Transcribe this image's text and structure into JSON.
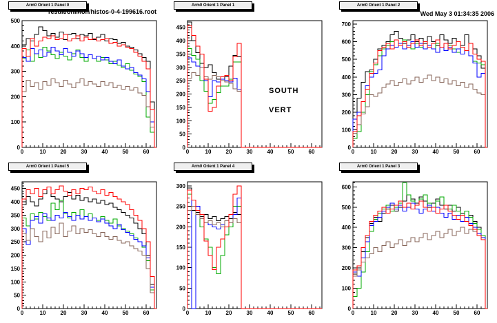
{
  "header": {
    "file_title": "result/onlMon/histos-0-4-199616.root",
    "timestamp": "Wed May  3 01:34:35 2006"
  },
  "colors": {
    "background": "#ffffff",
    "frame": "#000000",
    "pave_fill": "#efefef",
    "pave_shadow": "#000000",
    "series_black": "#000000",
    "series_red": "#ff0000",
    "series_green": "#00aa00",
    "series_blue": "#0000ff",
    "series_brown": "#87665a"
  },
  "chart_data": [
    {
      "name": "Arm0 Orient 1 Panel 0",
      "type": "step-histogram",
      "xlim": [
        0,
        65
      ],
      "ylim": [
        0,
        500
      ],
      "xticks": [
        0,
        10,
        20,
        30,
        40,
        50,
        60
      ],
      "yticks": [
        0,
        100,
        200,
        300,
        400,
        500
      ],
      "bin_width": 2,
      "grid": false,
      "series": [
        {
          "name": "black",
          "color": "#000000",
          "values": [
            405,
            430,
            420,
            445,
            475,
            460,
            440,
            450,
            435,
            455,
            425,
            445,
            450,
            430,
            445,
            440,
            450,
            425,
            435,
            445,
            420,
            430,
            425,
            410,
            415,
            400,
            395,
            385,
            370,
            355,
            340,
            180
          ]
        },
        {
          "name": "green",
          "color": "#00aa00",
          "values": [
            350,
            385,
            340,
            370,
            355,
            395,
            380,
            365,
            350,
            375,
            360,
            345,
            370,
            385,
            355,
            340,
            365,
            350,
            340,
            355,
            345,
            330,
            340,
            325,
            315,
            330,
            305,
            290,
            280,
            260,
            120,
            60
          ]
        },
        {
          "name": "blue",
          "color": "#0000ff",
          "values": [
            355,
            340,
            390,
            370,
            385,
            360,
            375,
            395,
            380,
            365,
            390,
            375,
            360,
            380,
            370,
            355,
            365,
            350,
            360,
            345,
            355,
            340,
            330,
            345,
            320,
            310,
            315,
            295,
            285,
            270,
            220,
            100
          ]
        },
        {
          "name": "brown",
          "color": "#87665a",
          "values": [
            220,
            265,
            240,
            255,
            230,
            260,
            245,
            270,
            255,
            240,
            265,
            250,
            235,
            255,
            270,
            245,
            260,
            250,
            240,
            260,
            245,
            255,
            235,
            245,
            230,
            240,
            225,
            235,
            215,
            205,
            160,
            80
          ]
        },
        {
          "name": "red",
          "color": "#ff0000",
          "values": [
            390,
            360,
            430,
            400,
            420,
            435,
            430,
            440,
            425,
            430,
            445,
            420,
            430,
            440,
            420,
            435,
            425,
            430,
            420,
            425,
            430,
            410,
            415,
            400,
            405,
            395,
            390,
            375,
            360,
            340,
            310,
            150
          ]
        }
      ]
    },
    {
      "name": "Arm0 Orient 1 Panel 1",
      "type": "step-histogram",
      "xlim": [
        0,
        65
      ],
      "ylim": [
        0,
        475
      ],
      "xticks": [
        0,
        10,
        20,
        30,
        40,
        50,
        60
      ],
      "yticks": [
        0,
        50,
        100,
        150,
        200,
        250,
        300,
        350,
        400,
        450
      ],
      "bin_width": 2,
      "grid": false,
      "annotation": {
        "line1": "SOUTH",
        "line2": "VERT"
      },
      "series": [
        {
          "name": "black",
          "color": "#000000",
          "values": [
            470,
            400,
            355,
            315,
            300,
            310,
            280,
            255,
            250,
            265,
            305,
            345,
            340
          ]
        },
        {
          "name": "green",
          "color": "#00aa00",
          "values": [
            370,
            345,
            330,
            250,
            210,
            165,
            180,
            205,
            230,
            230,
            255,
            320,
            320
          ]
        },
        {
          "name": "blue",
          "color": "#0000ff",
          "values": [
            335,
            320,
            305,
            300,
            250,
            190,
            250,
            245,
            255,
            250,
            245,
            260,
            215
          ]
        },
        {
          "name": "brown",
          "color": "#87665a",
          "values": [
            260,
            280,
            270,
            300,
            265,
            255,
            270,
            265,
            250,
            245,
            240,
            220,
            210
          ]
        },
        {
          "name": "red",
          "color": "#ff0000",
          "values": [
            455,
            420,
            380,
            350,
            255,
            135,
            150,
            230,
            265,
            270,
            250,
            340,
            390
          ]
        }
      ]
    },
    {
      "name": "Arm0 Orient 1 Panel 2",
      "type": "step-histogram",
      "xlim": [
        0,
        65
      ],
      "ylim": [
        0,
        720
      ],
      "xticks": [
        0,
        10,
        20,
        30,
        40,
        50,
        60
      ],
      "yticks": [
        0,
        100,
        200,
        300,
        400,
        500,
        600,
        700
      ],
      "bin_width": 2,
      "grid": false,
      "series": [
        {
          "name": "black",
          "color": "#000000",
          "values": [
            200,
            280,
            370,
            430,
            440,
            500,
            560,
            580,
            600,
            640,
            660,
            620,
            590,
            610,
            640,
            600,
            620,
            590,
            630,
            600,
            580,
            640,
            610,
            590,
            620,
            600,
            580,
            640,
            590,
            560,
            520,
            450
          ]
        },
        {
          "name": "green",
          "color": "#00aa00",
          "values": [
            50,
            90,
            200,
            300,
            430,
            470,
            520,
            560,
            580,
            600,
            570,
            590,
            610,
            580,
            560,
            590,
            570,
            600,
            580,
            560,
            590,
            570,
            550,
            580,
            560,
            540,
            570,
            550,
            520,
            490,
            480,
            470
          ]
        },
        {
          "name": "blue",
          "color": "#0000ff",
          "values": [
            160,
            200,
            260,
            350,
            400,
            420,
            440,
            520,
            560,
            580,
            570,
            590,
            560,
            580,
            600,
            570,
            590,
            560,
            580,
            560,
            540,
            570,
            550,
            570,
            540,
            560,
            530,
            550,
            520,
            480,
            400,
            420
          ]
        },
        {
          "name": "brown",
          "color": "#87665a",
          "values": [
            80,
            130,
            190,
            230,
            300,
            290,
            310,
            340,
            360,
            380,
            350,
            370,
            390,
            360,
            380,
            400,
            370,
            390,
            410,
            380,
            400,
            370,
            390,
            360,
            380,
            350,
            370,
            340,
            360,
            330,
            310,
            300
          ]
        },
        {
          "name": "red",
          "color": "#ff0000",
          "values": [
            90,
            180,
            260,
            330,
            420,
            480,
            550,
            570,
            590,
            560,
            610,
            580,
            600,
            570,
            590,
            610,
            580,
            600,
            570,
            590,
            610,
            570,
            590,
            560,
            580,
            600,
            570,
            550,
            590,
            530,
            500,
            490
          ]
        }
      ]
    },
    {
      "name": "Arm0 Orient 1 Panel 5",
      "type": "step-histogram",
      "xlim": [
        0,
        65
      ],
      "ylim": [
        0,
        475
      ],
      "xticks": [
        0,
        10,
        20,
        30,
        40,
        50,
        60
      ],
      "yticks": [
        0,
        50,
        100,
        150,
        200,
        250,
        300,
        350,
        400,
        450
      ],
      "bin_width": 2,
      "grid": false,
      "series": [
        {
          "name": "black",
          "color": "#000000",
          "values": [
            390,
            420,
            400,
            385,
            410,
            430,
            455,
            420,
            410,
            400,
            420,
            435,
            410,
            425,
            405,
            415,
            400,
            410,
            395,
            405,
            390,
            395,
            380,
            370,
            360,
            350,
            340,
            320,
            300,
            280,
            200,
            90
          ]
        },
        {
          "name": "green",
          "color": "#00aa00",
          "values": [
            340,
            310,
            355,
            335,
            360,
            345,
            330,
            395,
            370,
            405,
            355,
            340,
            360,
            350,
            370,
            345,
            355,
            340,
            330,
            345,
            330,
            320,
            335,
            310,
            300,
            290,
            280,
            265,
            250,
            230,
            180,
            70
          ]
        },
        {
          "name": "blue",
          "color": "#0000ff",
          "values": [
            300,
            240,
            330,
            345,
            320,
            355,
            340,
            330,
            350,
            340,
            360,
            345,
            330,
            350,
            335,
            345,
            330,
            340,
            325,
            335,
            320,
            310,
            300,
            315,
            295,
            285,
            275,
            260,
            250,
            235,
            190,
            80
          ]
        },
        {
          "name": "brown",
          "color": "#87665a",
          "values": [
            280,
            255,
            300,
            270,
            250,
            290,
            265,
            305,
            280,
            320,
            270,
            290,
            310,
            280,
            300,
            285,
            295,
            280,
            270,
            285,
            270,
            260,
            270,
            255,
            245,
            250,
            235,
            225,
            215,
            200,
            150,
            60
          ]
        },
        {
          "name": "red",
          "color": "#ff0000",
          "values": [
            410,
            445,
            430,
            450,
            420,
            445,
            455,
            430,
            445,
            460,
            440,
            425,
            445,
            430,
            450,
            445,
            455,
            440,
            430,
            445,
            425,
            435,
            420,
            410,
            400,
            390,
            370,
            350,
            330,
            300,
            250,
            120
          ]
        }
      ]
    },
    {
      "name": "Arm0 Orient 1 Panel 4",
      "type": "step-histogram",
      "xlim": [
        0,
        65
      ],
      "ylim": [
        0,
        310
      ],
      "xticks": [
        0,
        10,
        20,
        30,
        40,
        50,
        60
      ],
      "yticks": [
        0,
        50,
        100,
        150,
        200,
        250,
        300
      ],
      "bin_width": 2,
      "grid": false,
      "series": [
        {
          "name": "black",
          "color": "#000000",
          "values": [
            295,
            240,
            235,
            225,
            230,
            220,
            225,
            215,
            220,
            225,
            220,
            235,
            230
          ]
        },
        {
          "name": "green",
          "color": "#00aa00",
          "values": [
            280,
            250,
            230,
            200,
            170,
            150,
            100,
            85,
            130,
            180,
            200,
            250,
            250
          ]
        },
        {
          "name": "blue",
          "color": "#0000ff",
          "values": [
            290,
            0,
            250,
            230,
            210,
            205,
            200,
            195,
            205,
            200,
            210,
            230,
            270
          ]
        },
        {
          "name": "brown",
          "color": "#87665a",
          "values": [
            240,
            250,
            230,
            220,
            210,
            215,
            205,
            210,
            200,
            215,
            210,
            220,
            210
          ]
        },
        {
          "name": "red",
          "color": "#ff0000",
          "values": [
            290,
            265,
            240,
            230,
            165,
            130,
            95,
            150,
            170,
            200,
            230,
            280,
            300
          ]
        }
      ]
    },
    {
      "name": "Arm0 Orient 1 Panel 3",
      "type": "step-histogram",
      "xlim": [
        0,
        65
      ],
      "ylim": [
        0,
        625
      ],
      "xticks": [
        0,
        10,
        20,
        30,
        40,
        50,
        60
      ],
      "yticks": [
        0,
        100,
        200,
        300,
        400,
        500,
        600
      ],
      "bin_width": 2,
      "grid": false,
      "series": [
        {
          "name": "black",
          "color": "#000000",
          "values": [
            170,
            200,
            280,
            350,
            420,
            450,
            430,
            470,
            490,
            510,
            480,
            500,
            530,
            560,
            540,
            520,
            550,
            530,
            500,
            520,
            540,
            510,
            490,
            510,
            480,
            500,
            470,
            450,
            460,
            430,
            400,
            350
          ]
        },
        {
          "name": "green",
          "color": "#00aa00",
          "values": [
            60,
            100,
            180,
            280,
            380,
            440,
            470,
            490,
            510,
            480,
            500,
            520,
            620,
            560,
            530,
            510,
            540,
            560,
            520,
            500,
            530,
            550,
            510,
            490,
            510,
            480,
            460,
            480,
            450,
            420,
            390,
            360
          ]
        },
        {
          "name": "blue",
          "color": "#0000ff",
          "values": [
            180,
            160,
            250,
            330,
            410,
            430,
            450,
            480,
            500,
            520,
            490,
            510,
            480,
            500,
            520,
            490,
            470,
            490,
            510,
            480,
            500,
            470,
            450,
            470,
            440,
            460,
            430,
            450,
            420,
            400,
            370,
            350
          ]
        },
        {
          "name": "brown",
          "color": "#87665a",
          "values": [
            160,
            190,
            230,
            250,
            270,
            300,
            280,
            310,
            330,
            300,
            320,
            340,
            310,
            330,
            350,
            330,
            350,
            370,
            340,
            360,
            380,
            350,
            370,
            390,
            360,
            380,
            400,
            370,
            390,
            380,
            360,
            340
          ]
        },
        {
          "name": "red",
          "color": "#ff0000",
          "values": [
            190,
            210,
            300,
            360,
            430,
            460,
            480,
            500,
            470,
            490,
            510,
            530,
            500,
            520,
            490,
            510,
            530,
            500,
            480,
            500,
            470,
            490,
            510,
            480,
            460,
            440,
            460,
            430,
            410,
            390,
            360,
            340
          ]
        }
      ]
    }
  ]
}
